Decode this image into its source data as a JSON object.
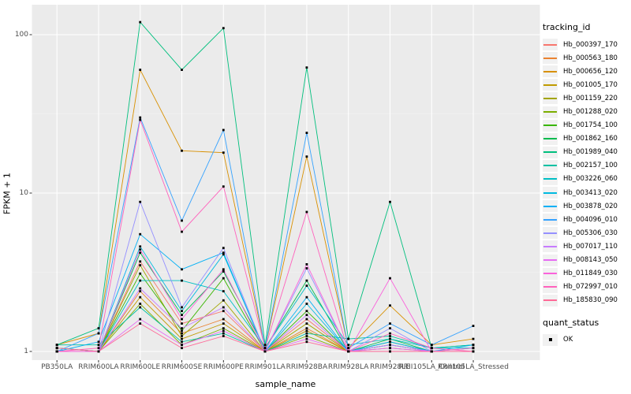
{
  "figure": {
    "background": "#FFFFFF",
    "panel_background": "#EBEBEB",
    "gridline_major_color": "#FFFFFF",
    "gridline_minor_color": "#F5F5F5",
    "tick_color": "#333333",
    "axis_text_color": "#4D4D4D"
  },
  "axes": {
    "x_title": "sample_name",
    "y_title": "FPKM + 1"
  },
  "legend": {
    "color_title": "tracking_id",
    "shape_title": "quant_status",
    "shape_items": [
      {
        "label": "OK",
        "shape": "black-square"
      }
    ]
  },
  "chart_data": {
    "type": "line",
    "title": "",
    "xlabel": "sample_name",
    "ylabel": "FPKM + 1",
    "y_scale": "log10",
    "y_ticks": [
      1,
      10,
      100
    ],
    "y_minor_breaks": [
      3.162,
      31.623
    ],
    "ylim": [
      0.88,
      135
    ],
    "legend_position": "right",
    "grid": true,
    "point_shape": "square",
    "point_color": "#000000",
    "x_categories": [
      "PB350LA",
      "RRIM600LA",
      "RRIM600LE",
      "RRIM600SE",
      "RRIM600PE",
      "RRIM901LA",
      "RRIM928BA",
      "RRIM928LA",
      "RRIM928LE",
      "RRII105LA_Control",
      "RRII105LA_Stressed"
    ],
    "series": [
      {
        "name": "Hb_000397_170",
        "color": "#F8766D",
        "values": [
          1.0,
          1.0,
          3.7,
          1.5,
          1.8,
          1.0,
          1.6,
          1.0,
          1.1,
          1.0,
          1.0
        ]
      },
      {
        "name": "Hb_000563_180",
        "color": "#EA8331",
        "values": [
          1.05,
          1.0,
          2.4,
          1.3,
          1.6,
          1.0,
          1.4,
          1.0,
          1.0,
          1.0,
          1.0
        ]
      },
      {
        "name": "Hb_000656_120",
        "color": "#D89000",
        "values": [
          1.1,
          1.3,
          60,
          18.5,
          18,
          1.05,
          17,
          1.05,
          1.95,
          1.1,
          1.2
        ]
      },
      {
        "name": "Hb_001005_170",
        "color": "#C09B00",
        "values": [
          1.0,
          1.0,
          2.2,
          1.2,
          1.5,
          1.0,
          1.35,
          1.0,
          1.05,
          1.0,
          1.0
        ]
      },
      {
        "name": "Hb_001159_220",
        "color": "#A3A500",
        "values": [
          1.0,
          1.0,
          3.5,
          1.25,
          2.1,
          1.0,
          1.5,
          1.0,
          1.1,
          1.0,
          1.0
        ]
      },
      {
        "name": "Hb_001288_020",
        "color": "#7CAE00",
        "values": [
          1.0,
          1.0,
          2.0,
          1.1,
          1.4,
          1.0,
          1.25,
          1.0,
          1.0,
          1.0,
          1.0
        ]
      },
      {
        "name": "Hb_001754_100",
        "color": "#39B600",
        "values": [
          1.0,
          1.0,
          3.1,
          1.35,
          2.9,
          1.0,
          1.8,
          1.0,
          1.15,
          1.0,
          1.0
        ]
      },
      {
        "name": "Hb_001862_160",
        "color": "#00BB4E",
        "values": [
          1.05,
          1.0,
          4.2,
          1.7,
          3.2,
          1.05,
          2.8,
          1.0,
          1.2,
          1.0,
          1.05
        ]
      },
      {
        "name": "Hb_001989_040",
        "color": "#00BF7D",
        "values": [
          1.1,
          1.4,
          120,
          60,
          110,
          1.1,
          62,
          1.2,
          8.8,
          1.05,
          1.1
        ]
      },
      {
        "name": "Hb_002157_100",
        "color": "#00C1A3",
        "values": [
          1.1,
          1.1,
          1.9,
          1.15,
          1.3,
          1.0,
          1.3,
          1.2,
          1.25,
          1.05,
          1.1
        ]
      },
      {
        "name": "Hb_003226_060",
        "color": "#00BFC4",
        "values": [
          1.05,
          1.0,
          2.8,
          2.8,
          2.4,
          1.05,
          2.6,
          1.1,
          1.2,
          1.05,
          1.05
        ]
      },
      {
        "name": "Hb_003413_020",
        "color": "#00BAE0",
        "values": [
          1.0,
          1.0,
          4.6,
          1.8,
          4.1,
          1.0,
          2.0,
          1.0,
          1.1,
          1.0,
          1.0
        ]
      },
      {
        "name": "Hb_003878_020",
        "color": "#00B0F6",
        "values": [
          1.0,
          1.15,
          5.5,
          3.3,
          4.2,
          1.0,
          2.2,
          1.0,
          1.15,
          1.0,
          1.1
        ]
      },
      {
        "name": "Hb_004096_010",
        "color": "#35A2FF",
        "values": [
          1.0,
          1.3,
          30,
          6.7,
          25,
          1.05,
          24,
          1.05,
          1.5,
          1.1,
          1.45
        ]
      },
      {
        "name": "Hb_005306_030",
        "color": "#9590FF",
        "values": [
          1.0,
          1.0,
          8.8,
          1.9,
          4.5,
          1.0,
          3.35,
          1.0,
          1.4,
          1.0,
          1.0
        ]
      },
      {
        "name": "Hb_007017_110",
        "color": "#C77CFF",
        "values": [
          1.0,
          1.0,
          2.5,
          1.4,
          1.9,
          1.0,
          1.7,
          1.0,
          1.1,
          1.0,
          1.0
        ]
      },
      {
        "name": "Hb_008143_050",
        "color": "#E76BF3",
        "values": [
          1.0,
          1.0,
          1.6,
          1.1,
          1.35,
          1.0,
          1.2,
          1.0,
          1.05,
          1.0,
          1.0
        ]
      },
      {
        "name": "Hb_011849_030",
        "color": "#FA62DB",
        "values": [
          1.0,
          1.0,
          4.4,
          1.6,
          3.3,
          1.0,
          3.55,
          1.0,
          2.9,
          1.0,
          1.05
        ]
      },
      {
        "name": "Hb_072997_010",
        "color": "#FF62BC",
        "values": [
          1.0,
          1.05,
          29,
          5.7,
          11,
          1.05,
          7.6,
          1.0,
          1.3,
          1.05,
          1.0
        ]
      },
      {
        "name": "Hb_185830_090",
        "color": "#FF6A98",
        "values": [
          1.05,
          1.0,
          1.5,
          1.05,
          1.25,
          1.0,
          1.15,
          1.0,
          1.0,
          1.0,
          1.0
        ]
      }
    ]
  }
}
